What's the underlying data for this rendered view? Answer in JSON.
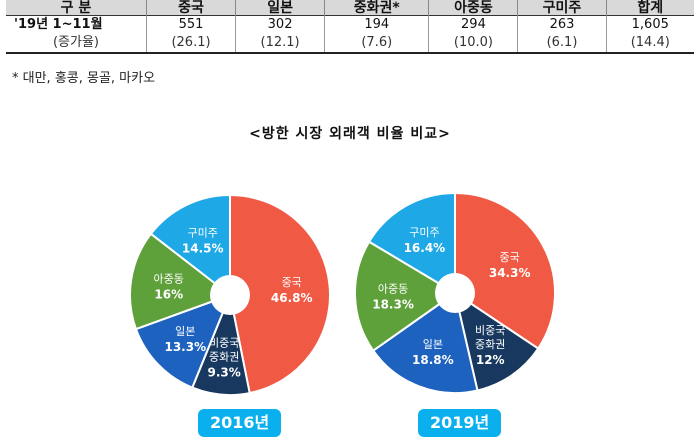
{
  "table": {
    "headers": [
      "구 분",
      "중국",
      "일본",
      "중화권*",
      "아중동",
      "구미주",
      "합계"
    ],
    "rows": [
      [
        "'19년 1~11월",
        "551",
        "302",
        "194",
        "294",
        "263",
        "1,605"
      ],
      [
        "(증가율)",
        "(26.1)",
        "(12.1)",
        "(7.6)",
        "(10.0)",
        "(6.1)",
        "(14.4)"
      ]
    ]
  },
  "note": "* 대만, 홍콩, 몽골, 마카오",
  "chart_title": "<방한 시장 외래객 비율 비교>",
  "colors": {
    "중국": "#f05a45",
    "비중국 중화권": "#18385f",
    "일본": "#1e62c0",
    "아중동": "#5ea03a",
    "구미주": "#1fa8e6",
    "badge": "#0ab0ee"
  },
  "chart_data": [
    {
      "type": "pie",
      "title": "2016년",
      "slices": [
        {
          "label": "중국",
          "value": 46.8,
          "display": "46.8%"
        },
        {
          "label": "비중국 중화권",
          "value": 9.3,
          "display": "9.3%"
        },
        {
          "label": "일본",
          "value": 13.3,
          "display": "13.3%"
        },
        {
          "label": "아중동",
          "value": 16,
          "display": "16%"
        },
        {
          "label": "구미주",
          "value": 14.5,
          "display": "14.5%"
        }
      ]
    },
    {
      "type": "pie",
      "title": "2019년",
      "slices": [
        {
          "label": "중국",
          "value": 34.3,
          "display": "34.3%"
        },
        {
          "label": "비중국 중화권",
          "value": 12,
          "display": "12%"
        },
        {
          "label": "일본",
          "value": 18.8,
          "display": "18.8%"
        },
        {
          "label": "아중동",
          "value": 18.3,
          "display": "18.3%"
        },
        {
          "label": "구미주",
          "value": 16.4,
          "display": "16.4%"
        }
      ]
    }
  ]
}
